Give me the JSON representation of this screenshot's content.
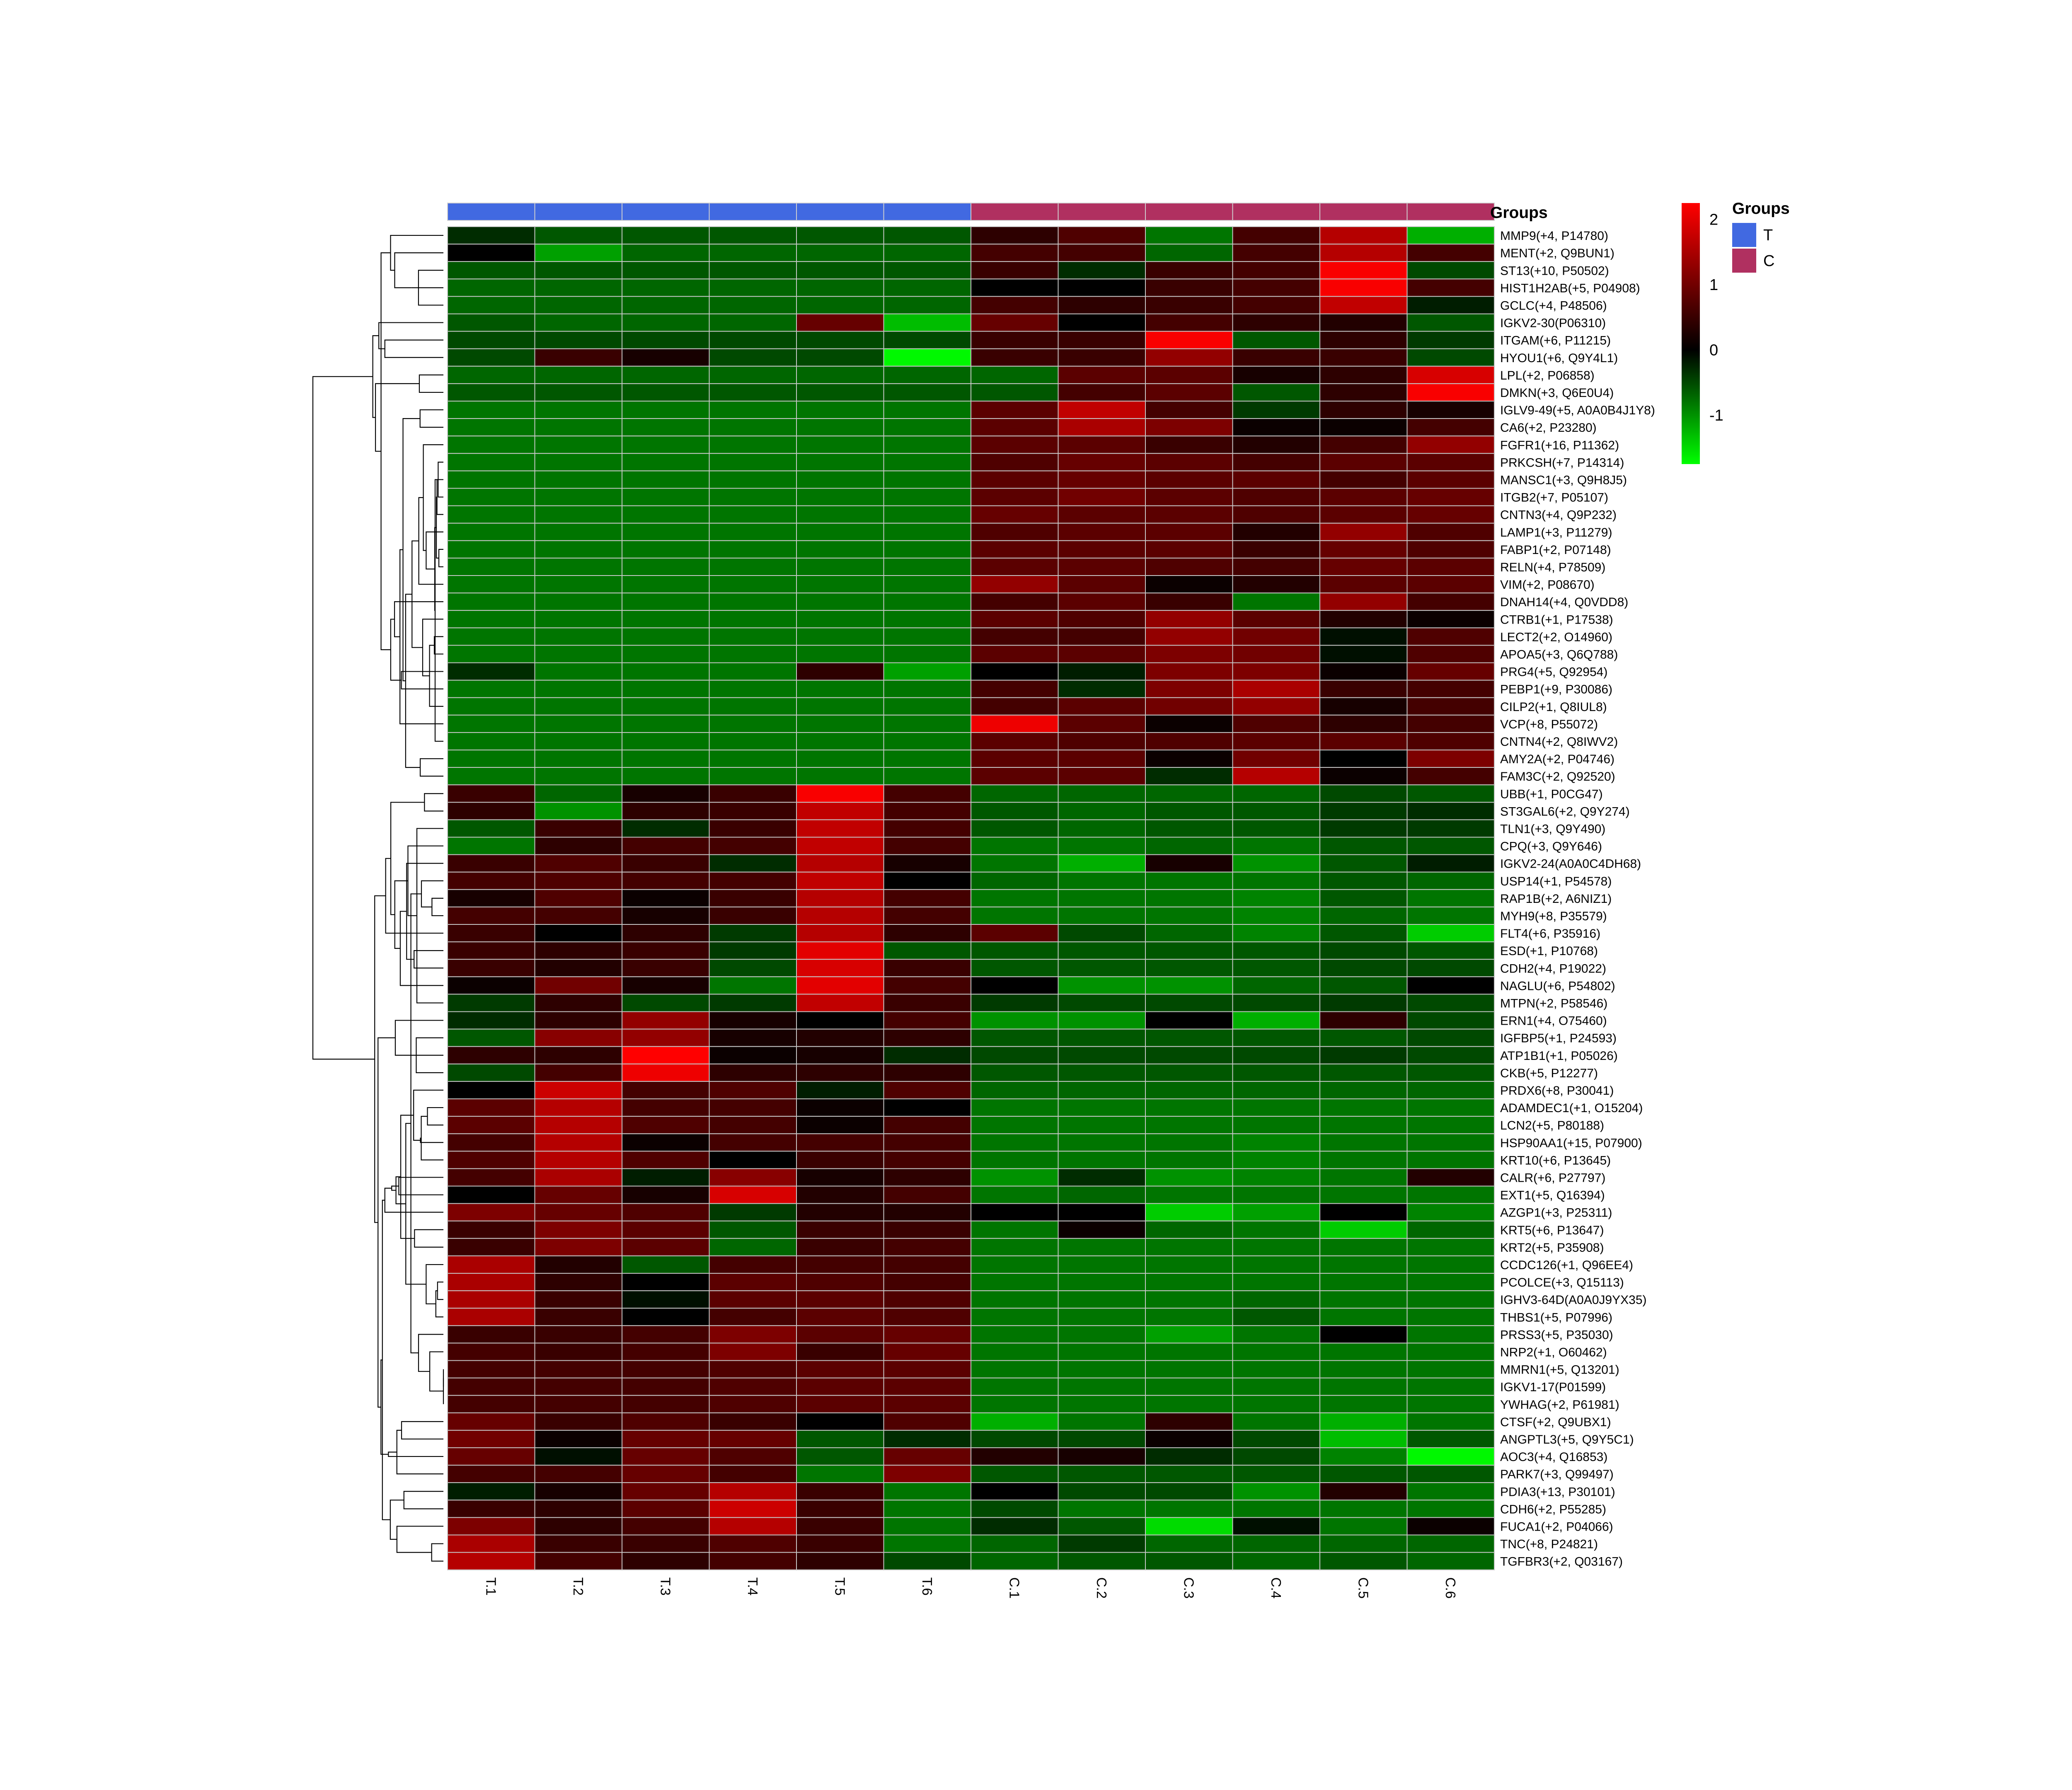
{
  "chart_data": {
    "type": "heatmap",
    "title": "",
    "annotation_title": "Groups",
    "legend": {
      "title": "Groups",
      "entries": [
        {
          "name": "T",
          "color": "#4169E1"
        },
        {
          "name": "C",
          "color": "#B03060"
        }
      ],
      "placement": "right"
    },
    "colorbar": {
      "ticks": [
        2,
        1,
        0,
        -1
      ],
      "range": [
        -1.75,
        2.25
      ],
      "colors": {
        "low": "#00FF00",
        "mid": "#000000",
        "high": "#FF0000"
      }
    },
    "columns": [
      "T.1",
      "T.2",
      "T.3",
      "T.4",
      "T.5",
      "T.6",
      "C.1",
      "C.2",
      "C.3",
      "C.4",
      "C.5",
      "C.6"
    ],
    "column_groups": [
      "T",
      "T",
      "T",
      "T",
      "T",
      "T",
      "C",
      "C",
      "C",
      "C",
      "C",
      "C"
    ],
    "rows": [
      "MMP9(+4, P14780)",
      "MENT(+2, Q9BUN1)",
      "ST13(+10, P50502)",
      "HIST1H2AB(+5, P04908)",
      "GCLC(+4, P48506)",
      "IGKV2-30(P06310)",
      "ITGAM(+6, P11215)",
      "HYOU1(+6, Q9Y4L1)",
      "LPL(+2, P06858)",
      "DMKN(+3, Q6E0U4)",
      "IGLV9-49(+5, A0A0B4J1Y8)",
      "CA6(+2, P23280)",
      "FGFR1(+16, P11362)",
      "PRKCSH(+7, P14314)",
      "MANSC1(+3, Q9H8J5)",
      "ITGB2(+7, P05107)",
      "CNTN3(+4, Q9P232)",
      "LAMP1(+3, P11279)",
      "FABP1(+2, P07148)",
      "RELN(+4, P78509)",
      "VIM(+2, P08670)",
      "DNAH14(+4, Q0VDD8)",
      "CTRB1(+1, P17538)",
      "LECT2(+2, O14960)",
      "APOA5(+3, Q6Q788)",
      "PRG4(+5, Q92954)",
      "PEBP1(+9, P30086)",
      "CILP2(+1, Q8IUL8)",
      "VCP(+8, P55072)",
      "CNTN4(+2, Q8IWV2)",
      "AMY2A(+2, P04746)",
      "FAM3C(+2, Q92520)",
      "UBB(+1, P0CG47)",
      "ST3GAL6(+2, Q9Y274)",
      "TLN1(+3, Q9Y490)",
      "CPQ(+3, Q9Y646)",
      "IGKV2-24(A0A0C4DH68)",
      "USP14(+1, P54578)",
      "RAP1B(+2, A6NIZ1)",
      "MYH9(+8, P35579)",
      "FLT4(+6, P35916)",
      "ESD(+1, P10768)",
      "CDH2(+4, P19022)",
      "NAGLU(+6, P54802)",
      "MTPN(+2, P58546)",
      "ERN1(+4, O75460)",
      "IGFBP5(+1, P24593)",
      "ATP1B1(+1, P05026)",
      "CKB(+5, P12277)",
      "PRDX6(+8, P30041)",
      "ADAMDEC1(+1, O15204)",
      "LCN2(+5, P80188)",
      "HSP90AA1(+15, P07900)",
      "KRT10(+6, P13645)",
      "CALR(+6, P27797)",
      "EXT1(+5, Q16394)",
      "AZGP1(+3, P25311)",
      "KRT5(+6, P13647)",
      "KRT2(+5, P35908)",
      "CCDC126(+1, Q96EE4)",
      "PCOLCE(+3, Q15113)",
      "IGHV3-64D(A0A0J9YX35)",
      "THBS1(+5, P07996)",
      "PRSS3(+5, P35030)",
      "NRP2(+1, O60462)",
      "MMRN1(+5, Q13201)",
      "IGKV1-17(P01599)",
      "YWHAG(+2, P61981)",
      "CTSF(+2, Q9UBX1)",
      "ANGPTL3(+5, Q9Y5C1)",
      "AOC3(+4, Q16853)",
      "PARK7(+3, Q99497)",
      "PDIA3(+13, P30101)",
      "CDH6(+2, P55285)",
      "FUCA1(+2, P04066)",
      "TNC(+8, P24821)",
      "TGFBR3(+2, Q03167)"
    ],
    "values": [
      [
        -0.3,
        -0.6,
        -0.6,
        -0.6,
        -0.6,
        -0.6,
        0.4,
        0.7,
        -0.8,
        0.6,
        1.6,
        -1.2
      ],
      [
        0.0,
        -1.1,
        -0.7,
        -0.7,
        -0.7,
        -0.7,
        0.6,
        0.6,
        -0.7,
        0.6,
        1.6,
        0.6
      ],
      [
        -0.6,
        -0.6,
        -0.6,
        -0.6,
        -0.6,
        -0.6,
        0.5,
        -0.3,
        0.5,
        0.6,
        2.2,
        -0.5
      ],
      [
        -0.7,
        -0.7,
        -0.7,
        -0.7,
        -0.7,
        -0.7,
        0.0,
        0.0,
        0.5,
        0.6,
        2.2,
        0.6
      ],
      [
        -0.7,
        -0.7,
        -0.7,
        -0.7,
        -0.7,
        -0.7,
        0.6,
        0.4,
        0.5,
        0.6,
        1.7,
        -0.2
      ],
      [
        -0.6,
        -0.7,
        -0.7,
        -0.7,
        0.9,
        -1.3,
        0.9,
        0.0,
        0.6,
        0.4,
        0.3,
        -0.6
      ],
      [
        -0.5,
        -0.5,
        -0.5,
        -0.5,
        -0.5,
        -0.5,
        0.5,
        0.5,
        2.2,
        -0.6,
        0.4,
        -0.4
      ],
      [
        -0.5,
        0.5,
        0.2,
        -0.5,
        -0.5,
        -1.7,
        0.5,
        0.5,
        1.3,
        0.5,
        0.5,
        -0.5
      ],
      [
        -0.7,
        -0.7,
        -0.7,
        -0.7,
        -0.7,
        -0.7,
        -0.7,
        0.8,
        0.8,
        0.2,
        0.4,
        1.9
      ],
      [
        -0.6,
        -0.6,
        -0.6,
        -0.6,
        -0.6,
        -0.6,
        -0.6,
        0.6,
        0.8,
        -0.6,
        0.4,
        2.2
      ],
      [
        -0.8,
        -0.8,
        -0.8,
        -0.8,
        -0.8,
        -0.8,
        0.8,
        1.7,
        0.6,
        -0.4,
        0.4,
        0.2
      ],
      [
        -0.8,
        -0.8,
        -0.8,
        -0.8,
        -0.8,
        -0.8,
        0.8,
        1.5,
        1.1,
        0.1,
        0.1,
        0.6
      ],
      [
        -0.8,
        -0.8,
        -0.8,
        -0.8,
        -0.8,
        -0.8,
        0.8,
        0.8,
        0.5,
        0.3,
        0.6,
        1.3
      ],
      [
        -0.8,
        -0.8,
        -0.8,
        -0.8,
        -0.8,
        -0.8,
        0.7,
        0.9,
        0.8,
        0.6,
        0.8,
        0.8
      ],
      [
        -0.8,
        -0.8,
        -0.8,
        -0.8,
        -0.8,
        -0.8,
        0.8,
        0.9,
        0.8,
        0.8,
        0.6,
        0.8
      ],
      [
        -0.8,
        -0.8,
        -0.8,
        -0.8,
        -0.8,
        -0.8,
        0.8,
        1.0,
        0.8,
        0.7,
        0.8,
        0.9
      ],
      [
        -0.8,
        -0.8,
        -0.8,
        -0.8,
        -0.8,
        -0.8,
        0.9,
        0.8,
        0.8,
        0.7,
        0.8,
        0.9
      ],
      [
        -0.8,
        -0.8,
        -0.8,
        -0.8,
        -0.8,
        -0.8,
        0.7,
        0.8,
        0.8,
        0.3,
        1.3,
        0.7
      ],
      [
        -0.8,
        -0.8,
        -0.8,
        -0.8,
        -0.8,
        -0.8,
        0.8,
        0.8,
        0.8,
        0.5,
        0.9,
        0.7
      ],
      [
        -0.8,
        -0.8,
        -0.8,
        -0.8,
        -0.8,
        -0.8,
        0.8,
        0.8,
        0.7,
        0.6,
        0.9,
        0.8
      ],
      [
        -0.8,
        -0.8,
        -0.8,
        -0.8,
        -0.8,
        -0.8,
        1.3,
        0.8,
        0.1,
        0.3,
        0.8,
        0.8
      ],
      [
        -0.8,
        -0.8,
        -0.8,
        -0.8,
        -0.8,
        -0.8,
        0.6,
        0.8,
        0.5,
        -0.8,
        1.3,
        0.6
      ],
      [
        -0.8,
        -0.8,
        -0.8,
        -0.8,
        -0.8,
        -0.8,
        0.8,
        0.7,
        1.3,
        0.8,
        0.3,
        0.1
      ],
      [
        -0.8,
        -0.8,
        -0.8,
        -0.8,
        -0.8,
        -0.8,
        0.6,
        0.6,
        1.3,
        1.0,
        -0.1,
        0.7
      ],
      [
        -0.8,
        -0.8,
        -0.8,
        -0.8,
        -0.8,
        -0.8,
        0.8,
        0.8,
        1.1,
        1.0,
        -0.1,
        0.7
      ],
      [
        -0.3,
        -0.8,
        -0.8,
        -0.8,
        0.4,
        -1.1,
        0.0,
        -0.2,
        1.1,
        1.1,
        0.1,
        0.9
      ],
      [
        -0.8,
        -0.8,
        -0.8,
        -0.8,
        -0.8,
        -0.8,
        0.6,
        -0.3,
        1.1,
        1.5,
        0.5,
        0.6
      ],
      [
        -0.8,
        -0.8,
        -0.8,
        -0.8,
        -0.8,
        -0.8,
        0.6,
        0.8,
        1.0,
        1.3,
        0.2,
        0.6
      ],
      [
        -0.8,
        -0.8,
        -0.8,
        -0.8,
        -0.8,
        -0.8,
        2.1,
        0.8,
        0.1,
        0.7,
        0.4,
        0.6
      ],
      [
        -0.8,
        -0.8,
        -0.8,
        -0.8,
        -0.8,
        -0.8,
        0.8,
        0.7,
        0.7,
        0.8,
        0.8,
        0.7
      ],
      [
        -0.8,
        -0.8,
        -0.8,
        -0.8,
        -0.8,
        -0.8,
        0.8,
        0.8,
        0.1,
        1.0,
        0.0,
        1.1
      ],
      [
        -0.8,
        -0.8,
        -0.8,
        -0.8,
        -0.8,
        -0.8,
        0.8,
        0.8,
        -0.3,
        1.6,
        0.1,
        0.6
      ],
      [
        0.5,
        -0.7,
        0.2,
        0.5,
        2.2,
        0.6,
        -0.7,
        -0.7,
        -0.7,
        -0.7,
        -0.5,
        -0.6
      ],
      [
        0.4,
        -1.0,
        0.4,
        0.5,
        1.7,
        0.6,
        -0.6,
        -0.7,
        -0.6,
        -0.6,
        -0.4,
        -0.3
      ],
      [
        -0.6,
        0.5,
        -0.3,
        0.5,
        1.7,
        0.6,
        -0.6,
        -0.7,
        -0.6,
        -0.6,
        -0.4,
        -0.4
      ],
      [
        -0.8,
        0.4,
        0.6,
        0.6,
        1.7,
        0.6,
        -0.8,
        -0.8,
        -0.7,
        -0.8,
        -0.6,
        -0.6
      ],
      [
        0.5,
        0.7,
        0.5,
        -0.3,
        1.6,
        0.2,
        -0.8,
        -1.2,
        0.2,
        -1.0,
        -0.6,
        -0.2
      ],
      [
        0.6,
        0.7,
        0.6,
        0.6,
        1.7,
        0.0,
        -0.7,
        -0.8,
        -0.8,
        -0.8,
        -0.6,
        -0.7
      ],
      [
        0.2,
        0.7,
        0.1,
        0.5,
        1.6,
        0.6,
        -0.8,
        -0.8,
        -0.8,
        -0.9,
        -0.6,
        -0.8
      ],
      [
        0.6,
        0.6,
        0.2,
        0.5,
        1.6,
        0.6,
        -0.8,
        -0.8,
        -0.8,
        -0.9,
        -0.7,
        -0.8
      ],
      [
        0.5,
        0.0,
        0.4,
        -0.4,
        1.6,
        0.4,
        0.8,
        -0.5,
        -0.7,
        -0.9,
        -0.6,
        -1.4
      ],
      [
        0.5,
        0.4,
        0.5,
        -0.4,
        2.0,
        -0.6,
        -0.6,
        -0.6,
        -0.6,
        -0.6,
        -0.5,
        -0.6
      ],
      [
        0.5,
        0.3,
        0.5,
        -0.5,
        1.9,
        0.5,
        -0.6,
        -0.6,
        -0.6,
        -0.6,
        -0.5,
        -0.5
      ],
      [
        0.1,
        1.0,
        0.2,
        -0.8,
        2.0,
        0.6,
        0.0,
        -1.0,
        -1.0,
        -0.7,
        -0.6,
        0.0
      ],
      [
        -0.4,
        0.4,
        -0.5,
        -0.4,
        1.7,
        0.5,
        -0.4,
        -0.5,
        -0.5,
        -0.5,
        -0.4,
        -0.5
      ],
      [
        -0.3,
        0.4,
        1.3,
        0.2,
        0.0,
        0.6,
        -1.0,
        -1.0,
        0.0,
        -1.2,
        0.4,
        -0.5
      ],
      [
        -0.6,
        1.2,
        1.3,
        0.2,
        0.3,
        0.4,
        -0.6,
        -0.6,
        -0.6,
        -0.6,
        -0.6,
        -0.5
      ],
      [
        0.4,
        0.4,
        2.3,
        0.1,
        0.2,
        -0.3,
        -0.5,
        -0.5,
        -0.5,
        -0.5,
        -0.4,
        -0.5
      ],
      [
        -0.5,
        0.6,
        2.1,
        0.4,
        0.4,
        0.4,
        -0.6,
        -0.6,
        -0.6,
        -0.6,
        -0.6,
        -0.6
      ],
      [
        0.0,
        1.8,
        0.6,
        0.7,
        -0.2,
        0.7,
        -0.7,
        -0.7,
        -0.7,
        -0.7,
        -0.7,
        -0.7
      ],
      [
        0.8,
        1.6,
        0.6,
        0.6,
        0.1,
        0.0,
        -0.8,
        -0.8,
        -0.8,
        -0.8,
        -0.8,
        -0.8
      ],
      [
        0.8,
        1.6,
        0.7,
        0.6,
        0.1,
        0.6,
        -0.8,
        -0.8,
        -0.8,
        -0.8,
        -0.8,
        -0.8
      ],
      [
        0.6,
        1.6,
        0.1,
        0.6,
        0.6,
        0.6,
        -0.8,
        -0.8,
        -0.8,
        -0.9,
        -0.8,
        -0.8
      ],
      [
        0.7,
        1.6,
        0.7,
        0.0,
        0.5,
        0.6,
        -0.8,
        -0.8,
        -0.8,
        -0.9,
        -0.8,
        -0.8
      ],
      [
        0.6,
        1.5,
        -0.2,
        1.2,
        0.2,
        0.4,
        -1.0,
        -0.3,
        -1.0,
        -0.9,
        -0.8,
        0.3
      ],
      [
        0.0,
        0.9,
        0.2,
        1.9,
        0.3,
        0.6,
        -0.8,
        -0.7,
        -0.8,
        -0.8,
        -0.8,
        -0.8
      ],
      [
        1.1,
        0.9,
        0.7,
        -0.4,
        0.3,
        0.3,
        0.0,
        0.0,
        -1.4,
        -1.1,
        0.0,
        -0.9
      ],
      [
        0.5,
        1.1,
        0.8,
        -0.6,
        0.5,
        0.5,
        -0.8,
        0.1,
        -0.7,
        -0.8,
        -1.4,
        -0.7
      ],
      [
        0.5,
        1.1,
        0.8,
        -0.7,
        0.5,
        0.6,
        -0.8,
        -0.8,
        -0.8,
        -0.8,
        -0.8,
        -0.8
      ],
      [
        1.5,
        0.3,
        -0.6,
        0.6,
        0.6,
        0.6,
        -0.8,
        -0.8,
        -0.8,
        -0.8,
        -0.8,
        -0.8
      ],
      [
        1.5,
        0.4,
        0.0,
        0.8,
        0.7,
        0.6,
        -0.8,
        -0.8,
        -0.8,
        -0.8,
        -0.8,
        -0.8
      ],
      [
        1.5,
        0.5,
        -0.1,
        0.8,
        0.8,
        0.7,
        -0.8,
        -0.8,
        -0.8,
        -0.7,
        -0.8,
        -0.8
      ],
      [
        1.5,
        0.5,
        0.0,
        0.6,
        0.8,
        0.7,
        -0.8,
        -0.8,
        -0.8,
        -0.6,
        -0.8,
        -0.8
      ],
      [
        0.5,
        0.5,
        0.6,
        1.1,
        0.8,
        0.9,
        -0.8,
        -0.8,
        -1.1,
        -0.8,
        0.0,
        -0.8
      ],
      [
        0.6,
        0.5,
        0.6,
        1.1,
        0.5,
        0.9,
        -0.8,
        -0.8,
        -0.8,
        -0.8,
        -0.8,
        -0.8
      ],
      [
        0.6,
        0.6,
        0.6,
        0.7,
        0.8,
        0.8,
        -0.8,
        -0.8,
        -0.8,
        -0.8,
        -0.8,
        -0.8
      ],
      [
        0.6,
        0.6,
        0.6,
        0.7,
        0.8,
        0.8,
        -0.8,
        -0.8,
        -0.8,
        -0.8,
        -0.8,
        -0.8
      ],
      [
        0.6,
        0.6,
        0.6,
        0.7,
        0.8,
        0.8,
        -0.8,
        -0.8,
        -0.8,
        -0.8,
        -0.8,
        -0.8
      ],
      [
        0.9,
        0.5,
        0.7,
        0.5,
        0.0,
        0.7,
        -1.2,
        -0.8,
        0.4,
        -0.8,
        -1.2,
        -0.8
      ],
      [
        1.0,
        0.1,
        0.9,
        0.9,
        -0.6,
        -0.3,
        -0.5,
        -0.5,
        0.1,
        -0.5,
        -1.3,
        -0.6
      ],
      [
        0.9,
        -0.1,
        0.9,
        0.7,
        -0.6,
        0.9,
        0.3,
        0.2,
        -0.3,
        -0.5,
        -0.9,
        -1.7
      ],
      [
        0.6,
        0.6,
        0.9,
        0.6,
        -0.8,
        1.1,
        -0.6,
        -0.6,
        -0.6,
        -0.6,
        -0.6,
        -0.6
      ],
      [
        -0.2,
        0.2,
        0.9,
        1.6,
        0.5,
        -0.8,
        0.0,
        -0.5,
        -0.5,
        -1.0,
        0.3,
        -0.8
      ],
      [
        0.5,
        0.4,
        0.8,
        1.8,
        0.5,
        -0.8,
        -0.5,
        -0.8,
        -0.8,
        -0.8,
        -0.8,
        -0.8
      ],
      [
        1.1,
        0.4,
        0.6,
        1.6,
        0.5,
        -0.8,
        -0.3,
        -0.6,
        -1.5,
        -0.1,
        -0.8,
        0.1
      ],
      [
        1.5,
        0.5,
        0.5,
        0.7,
        0.5,
        -0.8,
        -0.7,
        -0.4,
        -0.7,
        -0.7,
        -0.7,
        -0.7
      ],
      [
        1.6,
        0.6,
        0.4,
        0.6,
        0.4,
        -0.5,
        -0.7,
        -0.6,
        -0.6,
        -0.7,
        -0.6,
        -0.7
      ]
    ],
    "row_dendrogram": true,
    "grid": false
  }
}
